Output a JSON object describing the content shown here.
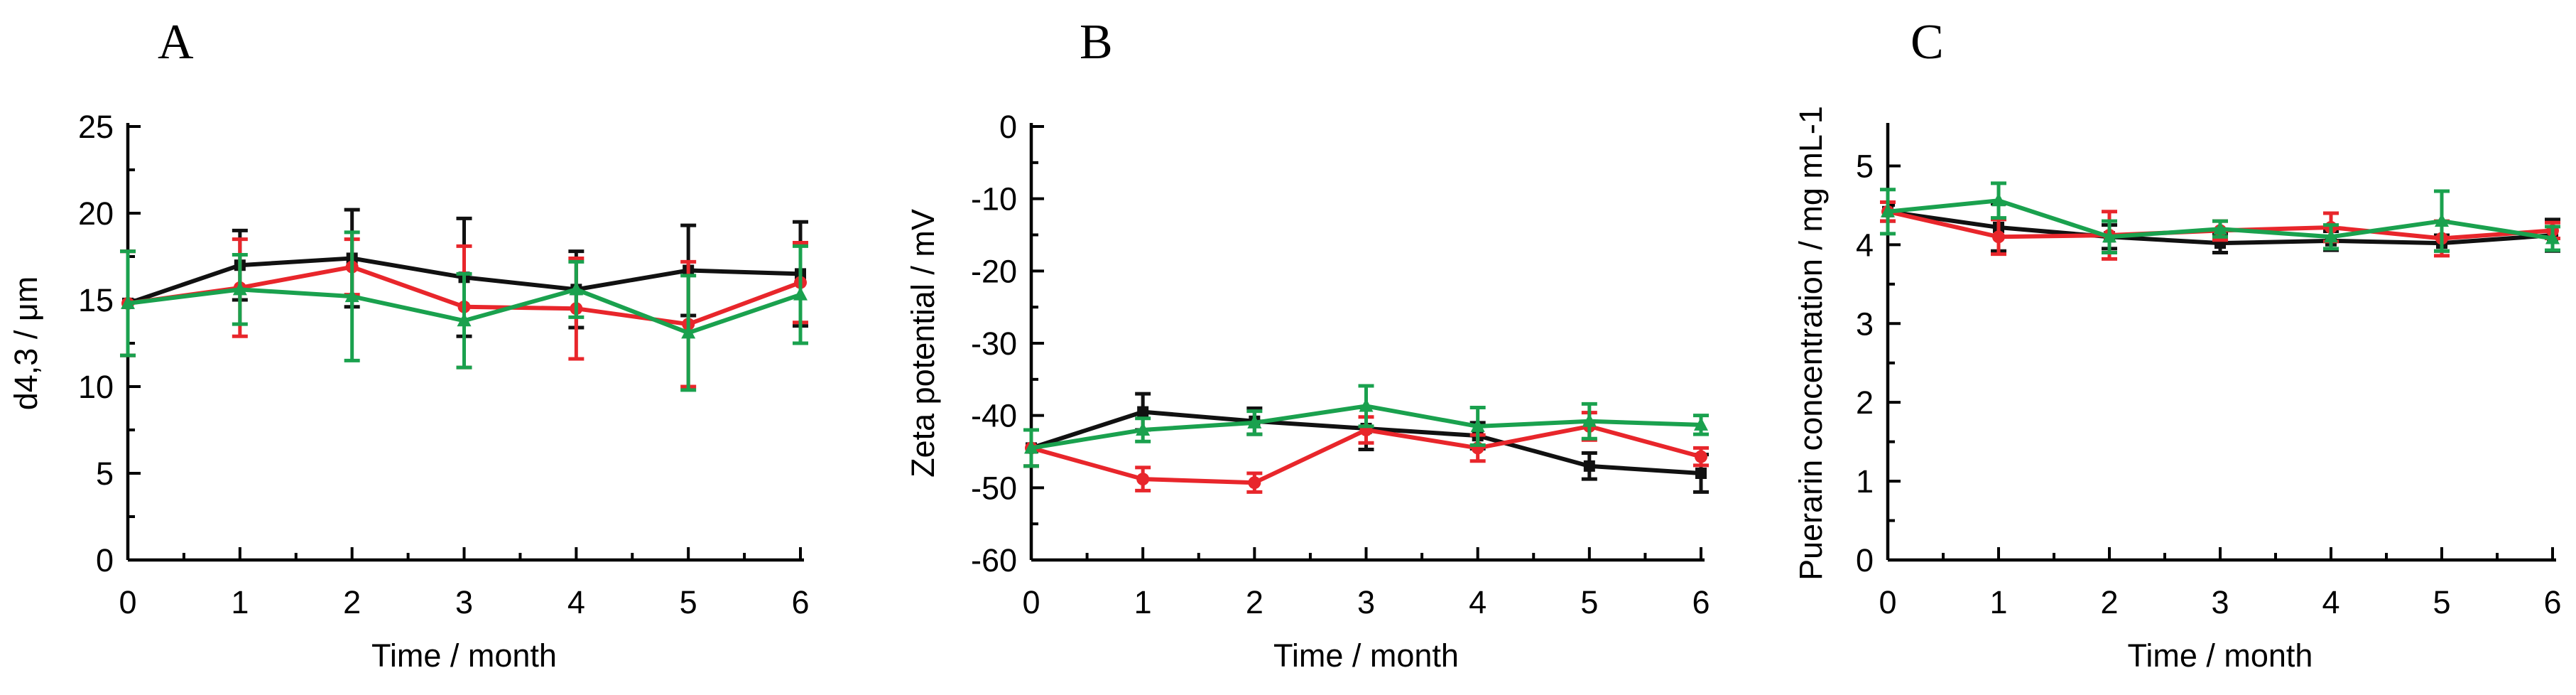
{
  "colors": {
    "black": "#111111",
    "red": "#e8262b",
    "green": "#1aa14e"
  },
  "chart_data": [
    {
      "panel": "A",
      "type": "line",
      "xlabel": "Time / month",
      "ylabel": "d4,3 / μm",
      "xlim": [
        0,
        6
      ],
      "ylim": [
        0,
        25
      ],
      "xticks": [
        "0",
        "1",
        "2",
        "3",
        "4",
        "5",
        "6"
      ],
      "yticks": [
        "0",
        "5",
        "10",
        "15",
        "20",
        "25"
      ],
      "series": [
        {
          "name": "black",
          "marker": "square",
          "x": [
            0,
            1,
            2,
            3,
            4,
            5,
            6
          ],
          "values": [
            14.8,
            17.0,
            17.4,
            16.3,
            15.6,
            16.7,
            16.5
          ],
          "err": [
            3.0,
            2.0,
            2.8,
            3.4,
            2.2,
            2.6,
            3.0
          ]
        },
        {
          "name": "red",
          "marker": "circle",
          "x": [
            0,
            1,
            2,
            3,
            4,
            5,
            6
          ],
          "values": [
            14.8,
            15.7,
            16.9,
            14.6,
            14.5,
            13.6,
            16.0
          ],
          "err": [
            3.0,
            2.8,
            1.6,
            3.5,
            2.9,
            3.6,
            2.3
          ]
        },
        {
          "name": "green",
          "marker": "triangle",
          "x": [
            0,
            1,
            2,
            3,
            4,
            5,
            6
          ],
          "values": [
            14.8,
            15.6,
            15.2,
            13.8,
            15.6,
            13.1,
            15.3
          ],
          "err": [
            3.0,
            2.0,
            3.7,
            2.7,
            1.6,
            3.3,
            2.8
          ]
        }
      ]
    },
    {
      "panel": "B",
      "type": "line",
      "xlabel": "Time / month",
      "ylabel": "Zeta potential / mV",
      "xlim": [
        0,
        6
      ],
      "ylim": [
        -60,
        0
      ],
      "xticks": [
        "0",
        "1",
        "2",
        "3",
        "4",
        "5",
        "6"
      ],
      "yticks": [
        "-60",
        "-50",
        "-40",
        "-30",
        "-20",
        "-10",
        "0"
      ],
      "series": [
        {
          "name": "black",
          "marker": "square",
          "x": [
            0,
            1,
            2,
            3,
            4,
            5,
            6
          ],
          "values": [
            -44.5,
            -39.5,
            -40.8,
            -41.8,
            -42.8,
            -47.0,
            -48.0
          ],
          "err": [
            2.5,
            2.5,
            1.8,
            2.9,
            1.8,
            1.8,
            2.6
          ]
        },
        {
          "name": "red",
          "marker": "circle",
          "x": [
            0,
            1,
            2,
            3,
            4,
            5,
            6
          ],
          "values": [
            -44.5,
            -48.8,
            -49.3,
            -42.0,
            -44.5,
            -41.5,
            -45.7
          ],
          "err": [
            2.5,
            1.6,
            1.3,
            1.8,
            1.8,
            1.9,
            1.2
          ]
        },
        {
          "name": "green",
          "marker": "triangle",
          "x": [
            0,
            1,
            2,
            3,
            4,
            5,
            6
          ],
          "values": [
            -44.5,
            -42.0,
            -41.0,
            -38.7,
            -41.5,
            -40.8,
            -41.3
          ],
          "err": [
            2.5,
            1.6,
            1.6,
            2.8,
            2.6,
            2.4,
            1.3
          ]
        }
      ]
    },
    {
      "panel": "C",
      "type": "line",
      "xlabel": "Time / month",
      "ylabel": "Puerarin concentration / mg mL-1",
      "xlim": [
        0,
        6
      ],
      "ylim": [
        0,
        5.5
      ],
      "xticks": [
        "0",
        "1",
        "2",
        "3",
        "4",
        "5",
        "6"
      ],
      "yticks": [
        "0",
        "1",
        "2",
        "3",
        "4",
        "5"
      ],
      "series": [
        {
          "name": "black",
          "marker": "square",
          "x": [
            0,
            1,
            2,
            3,
            4,
            5,
            6
          ],
          "values": [
            4.42,
            4.22,
            4.1,
            4.02,
            4.05,
            4.02,
            4.12
          ],
          "err": [
            0.12,
            0.3,
            0.15,
            0.12,
            0.12,
            0.1,
            0.2
          ]
        },
        {
          "name": "red",
          "marker": "circle",
          "x": [
            0,
            1,
            2,
            3,
            4,
            5,
            6
          ],
          "values": [
            4.42,
            4.1,
            4.12,
            4.18,
            4.22,
            4.08,
            4.18
          ],
          "err": [
            0.12,
            0.22,
            0.3,
            0.12,
            0.18,
            0.22,
            0.1
          ]
        },
        {
          "name": "green",
          "marker": "triangle",
          "x": [
            0,
            1,
            2,
            3,
            4,
            5,
            6
          ],
          "values": [
            4.42,
            4.56,
            4.1,
            4.2,
            4.1,
            4.3,
            4.08
          ],
          "err": [
            0.28,
            0.22,
            0.2,
            0.1,
            0.15,
            0.38,
            0.15
          ]
        }
      ]
    }
  ]
}
